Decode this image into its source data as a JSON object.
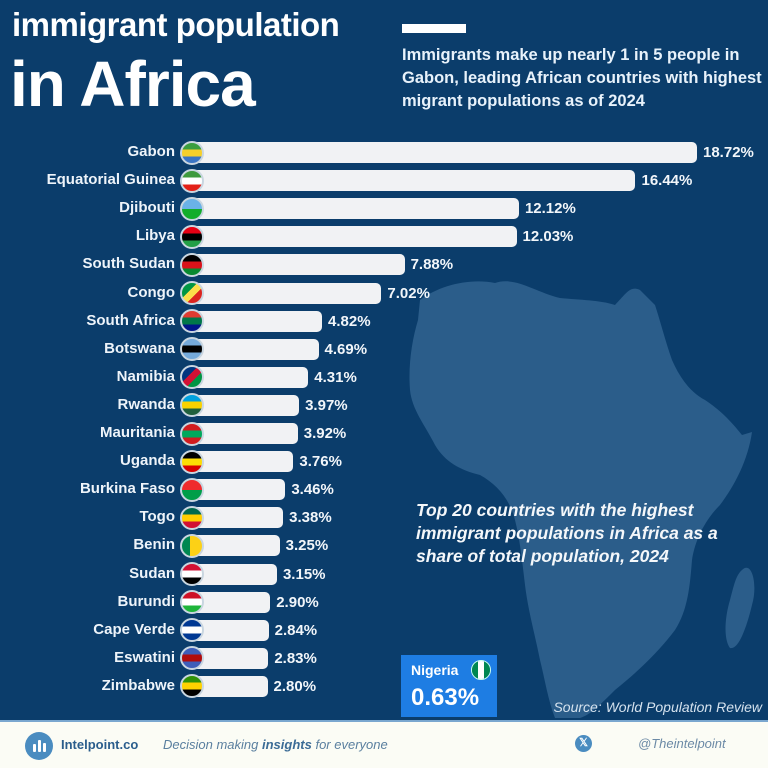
{
  "header": {
    "title_line1": "immigrant population",
    "title_line2": "in Africa",
    "subtitle": "Immigrants make up nearly 1 in 5 people in Gabon, leading African countries with highest migrant populations as of 2024"
  },
  "note": "Top 20 countries with the highest immigrant populations in Africa as a share of total population, 2024",
  "highlight": {
    "country": "Nigeria",
    "value_label": "0.63%",
    "value": 0.63,
    "flag_icon": "nigeria-flag-icon"
  },
  "source": "Source: World Population Review",
  "footer": {
    "brand": "Intelpoint.co",
    "tagline_pre": "Decision making ",
    "tagline_bold": "insights",
    "tagline_post": " for everyone",
    "social_icon": "x-twitter-icon",
    "handle": "@Theintelpoint"
  },
  "colors": {
    "background": "#0b3d6b",
    "map": "#2b5d8a",
    "bar": "#f1f2f4",
    "highlight_box": "#1e7de3",
    "footer_bg": "#fbfcf5"
  },
  "chart_data": {
    "type": "bar",
    "orientation": "horizontal",
    "title": "immigrant population in Africa",
    "xlabel": "",
    "ylabel": "",
    "unit": "% of total population",
    "xlim": [
      0,
      18.72
    ],
    "grid": false,
    "categories": [
      "Gabon",
      "Equatorial Guinea",
      "Djibouti",
      "Libya",
      "South Sudan",
      "Congo",
      "South Africa",
      "Botswana",
      "Namibia",
      "Rwanda",
      "Mauritania",
      "Uganda",
      "Burkina Faso",
      "Togo",
      "Benin",
      "Sudan",
      "Burundi",
      "Cape Verde",
      "Eswatini",
      "Zimbabwe"
    ],
    "values": [
      18.72,
      16.44,
      12.12,
      12.03,
      7.88,
      7.02,
      4.82,
      4.69,
      4.31,
      3.97,
      3.92,
      3.76,
      3.46,
      3.38,
      3.25,
      3.15,
      2.9,
      2.84,
      2.83,
      2.8
    ],
    "labels": [
      "18.72%",
      "16.44%",
      "12.12%",
      "12.03%",
      "7.88%",
      "7.02%",
      "4.82%",
      "4.69%",
      "4.31%",
      "3.97%",
      "3.92%",
      "3.76%",
      "3.46%",
      "3.38%",
      "3.25%",
      "3.15%",
      "2.90%",
      "2.84%",
      "2.83%",
      "2.80%"
    ],
    "flags": [
      {
        "icon": "gabon-flag-icon",
        "colors": [
          "#3a9e3f",
          "#f5cf2b",
          "#3a75c4"
        ],
        "dir": "h"
      },
      {
        "icon": "equatorial-guinea-flag-icon",
        "colors": [
          "#3e9a3e",
          "#ffffff",
          "#e32118"
        ],
        "dir": "h"
      },
      {
        "icon": "djibouti-flag-icon",
        "colors": [
          "#6ab2e7",
          "#12ad2b"
        ],
        "dir": "h"
      },
      {
        "icon": "libya-flag-icon",
        "colors": [
          "#e70013",
          "#000000",
          "#239e46"
        ],
        "dir": "h"
      },
      {
        "icon": "south-sudan-flag-icon",
        "colors": [
          "#000000",
          "#da121a",
          "#078930"
        ],
        "dir": "h"
      },
      {
        "icon": "congo-flag-icon",
        "colors": [
          "#009543",
          "#fbde4a",
          "#dc241f"
        ],
        "dir": "d"
      },
      {
        "icon": "south-africa-flag-icon",
        "colors": [
          "#e03c31",
          "#007749",
          "#001489"
        ],
        "dir": "h"
      },
      {
        "icon": "botswana-flag-icon",
        "colors": [
          "#75aadb",
          "#000000",
          "#75aadb"
        ],
        "dir": "h"
      },
      {
        "icon": "namibia-flag-icon",
        "colors": [
          "#003580",
          "#d21034",
          "#009543"
        ],
        "dir": "d"
      },
      {
        "icon": "rwanda-flag-icon",
        "colors": [
          "#00a1de",
          "#fad201",
          "#20603d"
        ],
        "dir": "h"
      },
      {
        "icon": "mauritania-flag-icon",
        "colors": [
          "#d01c1f",
          "#00a95c",
          "#d01c1f"
        ],
        "dir": "h"
      },
      {
        "icon": "uganda-flag-icon",
        "colors": [
          "#000000",
          "#fcdc04",
          "#d90000"
        ],
        "dir": "h"
      },
      {
        "icon": "burkina-faso-flag-icon",
        "colors": [
          "#ef2b2d",
          "#009e49"
        ],
        "dir": "h"
      },
      {
        "icon": "togo-flag-icon",
        "colors": [
          "#006a4e",
          "#ffce00",
          "#d21034"
        ],
        "dir": "h"
      },
      {
        "icon": "benin-flag-icon",
        "colors": [
          "#008751",
          "#fcd116",
          "#e8112d"
        ],
        "dir": "v"
      },
      {
        "icon": "sudan-flag-icon",
        "colors": [
          "#d21034",
          "#ffffff",
          "#000000"
        ],
        "dir": "h"
      },
      {
        "icon": "burundi-flag-icon",
        "colors": [
          "#ce1126",
          "#ffffff",
          "#1eb53a"
        ],
        "dir": "h"
      },
      {
        "icon": "cape-verde-flag-icon",
        "colors": [
          "#003893",
          "#ffffff",
          "#003893"
        ],
        "dir": "h"
      },
      {
        "icon": "eswatini-flag-icon",
        "colors": [
          "#3e5eb9",
          "#b10c0c",
          "#3e5eb9"
        ],
        "dir": "h"
      },
      {
        "icon": "zimbabwe-flag-icon",
        "colors": [
          "#319208",
          "#ffd200",
          "#000000"
        ],
        "dir": "h"
      }
    ]
  }
}
